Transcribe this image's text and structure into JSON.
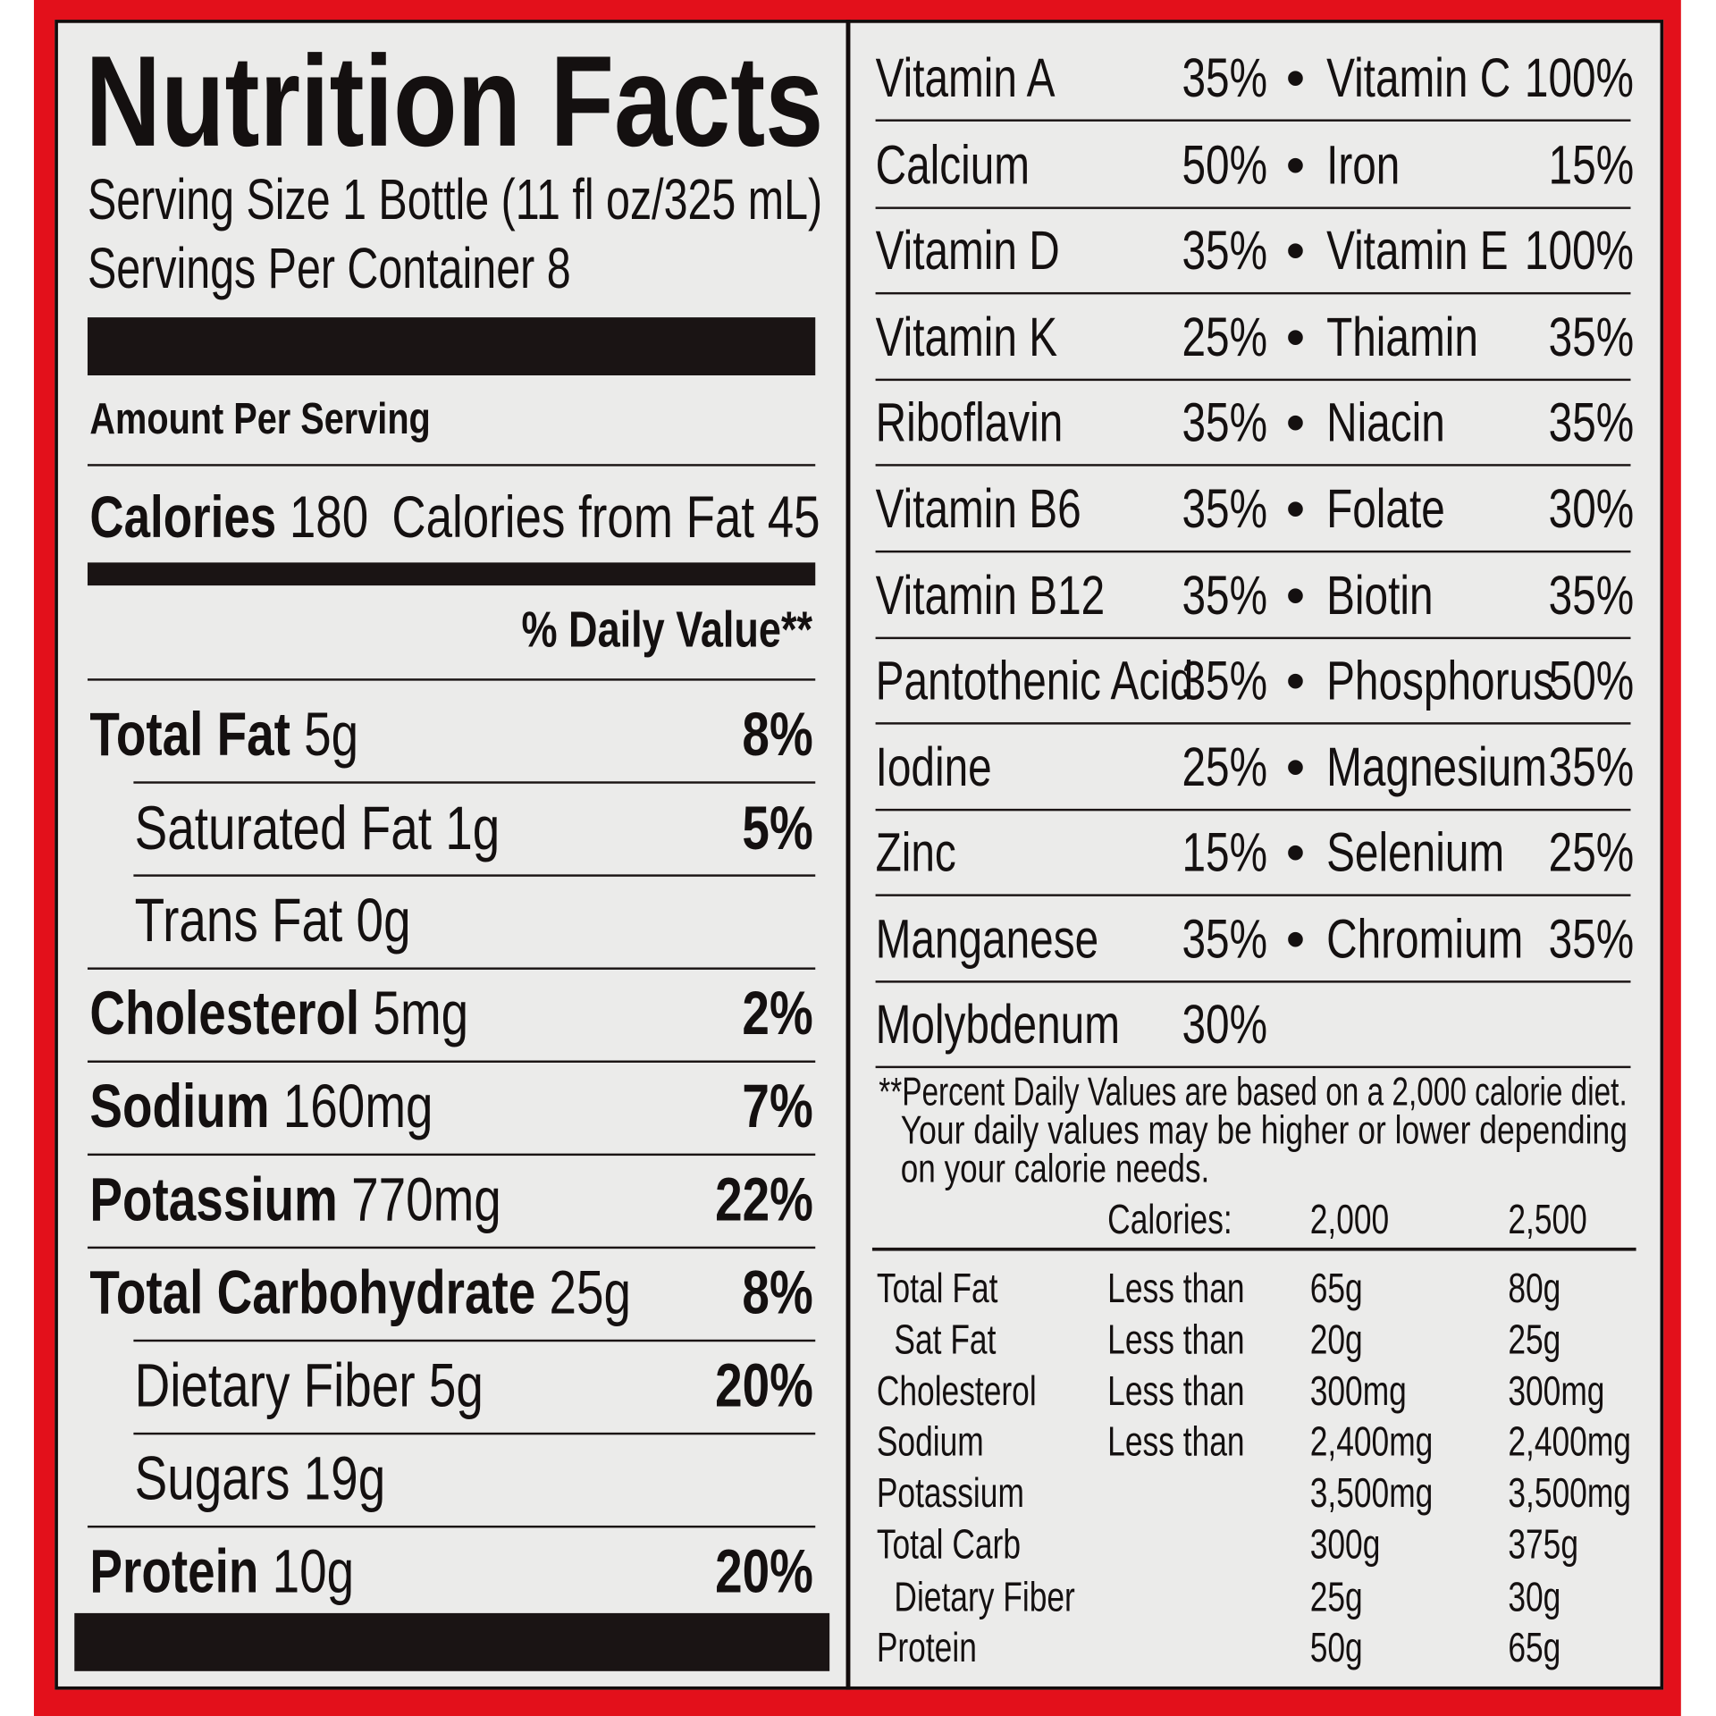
{
  "label": {
    "title": "Nutrition Facts",
    "serving_size": "Serving Size 1 Bottle (11 fl oz/325 mL)",
    "servings_per_container": "Servings Per Container 8",
    "amount_per_serving": "Amount Per Serving",
    "calories": {
      "label": "Calories",
      "value": "180",
      "from_fat": "Calories from Fat 45"
    },
    "daily_value_header": "% Daily Value**",
    "nutrients": [
      {
        "name": "Total Fat",
        "amount": "5g",
        "dv": "8%",
        "bold": true,
        "indent": false
      },
      {
        "name": "Saturated Fat",
        "amount": "1g",
        "dv": "5%",
        "bold": false,
        "indent": true
      },
      {
        "name": "Trans Fat",
        "amount": "0g",
        "dv": "",
        "bold": false,
        "indent": true
      },
      {
        "name": "Cholesterol",
        "amount": "5mg",
        "dv": "2%",
        "bold": true,
        "indent": false
      },
      {
        "name": "Sodium",
        "amount": "160mg",
        "dv": "7%",
        "bold": true,
        "indent": false
      },
      {
        "name": "Potassium",
        "amount": "770mg",
        "dv": "22%",
        "bold": true,
        "indent": false
      },
      {
        "name": "Total Carbohydrate",
        "amount": "25g",
        "dv": "8%",
        "bold": true,
        "indent": false
      },
      {
        "name": "Dietary Fiber",
        "amount": "5g",
        "dv": "20%",
        "bold": false,
        "indent": true
      },
      {
        "name": "Sugars",
        "amount": "19g",
        "dv": "",
        "bold": false,
        "indent": true
      },
      {
        "name": "Protein",
        "amount": "10g",
        "dv": "20%",
        "bold": true,
        "indent": false
      }
    ],
    "vitamins": [
      {
        "name": "Vitamin A",
        "pct": "35%",
        "name2": "Vitamin C",
        "pct2": "100%"
      },
      {
        "name": "Calcium",
        "pct": "50%",
        "name2": "Iron",
        "pct2": "15%"
      },
      {
        "name": "Vitamin D",
        "pct": "35%",
        "name2": "Vitamin E",
        "pct2": "100%"
      },
      {
        "name": "Vitamin K",
        "pct": "25%",
        "name2": "Thiamin",
        "pct2": "35%"
      },
      {
        "name": "Riboflavin",
        "pct": "35%",
        "name2": "Niacin",
        "pct2": "35%"
      },
      {
        "name": "Vitamin B6",
        "pct": "35%",
        "name2": "Folate",
        "pct2": "30%"
      },
      {
        "name": "Vitamin B12",
        "pct": "35%",
        "name2": "Biotin",
        "pct2": "35%"
      },
      {
        "name": "Pantothenic Acid",
        "pct": "35%",
        "name2": "Phosphorus",
        "pct2": "50%"
      },
      {
        "name": "Iodine",
        "pct": "25%",
        "name2": "Magnesium",
        "pct2": "35%"
      },
      {
        "name": "Zinc",
        "pct": "15%",
        "name2": "Selenium",
        "pct2": "25%"
      },
      {
        "name": "Manganese",
        "pct": "35%",
        "name2": "Chromium",
        "pct2": "35%"
      },
      {
        "name": "Molybdenum",
        "pct": "30%",
        "name2": "",
        "pct2": ""
      }
    ],
    "bullet": "•",
    "footnote": [
      "**Percent Daily Values are based on a 2,000 calorie diet.",
      "Your daily values may be higher or lower depending",
      "on your calorie needs."
    ],
    "reference": {
      "header": [
        "Calories:",
        "2,000",
        "2,500"
      ],
      "rows": [
        {
          "name": "Total Fat",
          "qualifier": "Less than",
          "v2000": "65g",
          "v2500": "80g",
          "indent": false
        },
        {
          "name": "Sat Fat",
          "qualifier": "Less than",
          "v2000": "20g",
          "v2500": "25g",
          "indent": true
        },
        {
          "name": "Cholesterol",
          "qualifier": "Less than",
          "v2000": "300mg",
          "v2500": "300mg",
          "indent": false
        },
        {
          "name": "Sodium",
          "qualifier": "Less than",
          "v2000": "2,400mg",
          "v2500": "2,400mg",
          "indent": false
        },
        {
          "name": "Potassium",
          "qualifier": "",
          "v2000": "3,500mg",
          "v2500": "3,500mg",
          "indent": false
        },
        {
          "name": "Total Carb",
          "qualifier": "",
          "v2000": "300g",
          "v2500": "375g",
          "indent": false
        },
        {
          "name": "Dietary Fiber",
          "qualifier": "",
          "v2000": "25g",
          "v2500": "30g",
          "indent": true
        },
        {
          "name": "Protein",
          "qualifier": "",
          "v2000": "50g",
          "v2500": "65g",
          "indent": false
        }
      ]
    }
  },
  "colors": {
    "border_red": "#e3101b",
    "panel": "#ebebea",
    "ink": "#141010"
  }
}
